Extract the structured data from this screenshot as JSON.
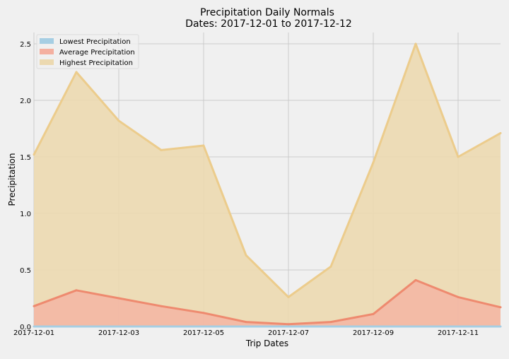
{
  "chart_data": {
    "type": "area",
    "title": "Precipitation Daily Normals",
    "subtitle": "Dates: 2017-12-01 to 2017-12-12",
    "xlabel": "Trip Dates",
    "ylabel": "Precipitation",
    "x": [
      "2017-12-01",
      "2017-12-02",
      "2017-12-03",
      "2017-12-04",
      "2017-12-05",
      "2017-12-06",
      "2017-12-07",
      "2017-12-08",
      "2017-12-09",
      "2017-12-10",
      "2017-12-11",
      "2017-12-12"
    ],
    "x_tick_labels": [
      "2017-12-01",
      "2017-12-03",
      "2017-12-05",
      "2017-12-07",
      "2017-12-09",
      "2017-12-11"
    ],
    "ylim": [
      0,
      2.6
    ],
    "y_ticks": [
      "0.0",
      "0.5",
      "1.0",
      "1.5",
      "2.0",
      "2.5"
    ],
    "y_tick_values": [
      0,
      0.5,
      1.0,
      1.5,
      2.0,
      2.5
    ],
    "grid": true,
    "legend_position": "top-left",
    "series": [
      {
        "name": "Lowest Precipitation",
        "color": "#a6cee3",
        "values": [
          0,
          0,
          0,
          0,
          0,
          0,
          0,
          0,
          0,
          0,
          0,
          0
        ]
      },
      {
        "name": "Average Precipitation",
        "color": "#f4b0a0",
        "line_color": "#ee8a6f",
        "values": [
          0.18,
          0.32,
          0.25,
          0.18,
          0.12,
          0.04,
          0.02,
          0.04,
          0.11,
          0.41,
          0.26,
          0.17
        ]
      },
      {
        "name": "Highest Precipitation",
        "color": "#ecd9b0",
        "line_color": "#eccc8c",
        "values": [
          1.52,
          2.25,
          1.82,
          1.56,
          1.6,
          0.63,
          0.26,
          0.53,
          1.45,
          2.5,
          1.5,
          1.71
        ]
      }
    ],
    "colors": {
      "background": "#f0f0f0",
      "grid": "#cbcbcb",
      "text": "#000000"
    }
  }
}
